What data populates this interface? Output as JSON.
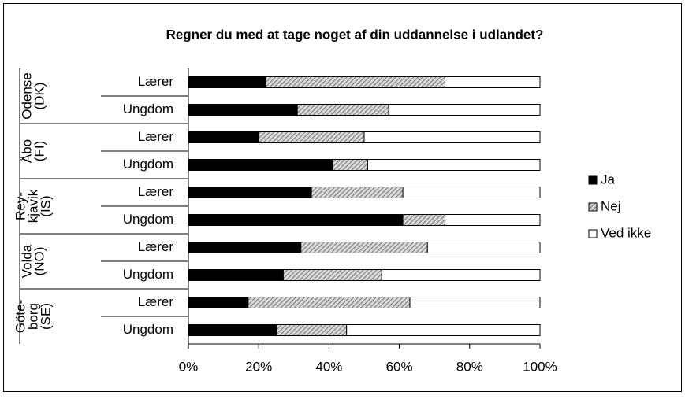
{
  "chart_data": {
    "type": "stacked-bar-horizontal",
    "title": "Regner du med at tage noget af din uddannelse i udlandet?",
    "groups": [
      {
        "label_lines": [
          "Odense",
          "(DK)"
        ],
        "categories": [
          "Lærer",
          "Ungdom"
        ]
      },
      {
        "label_lines": [
          "Åbo",
          "(FI)"
        ],
        "categories": [
          "Lærer",
          "Ungdom"
        ]
      },
      {
        "label_lines": [
          "Rey-",
          "kjavik",
          "(IS)"
        ],
        "categories": [
          "Lærer",
          "Ungdom"
        ]
      },
      {
        "label_lines": [
          "Volda",
          "(NO)"
        ],
        "categories": [
          "Lærer",
          "Ungdom"
        ]
      },
      {
        "label_lines": [
          "Göte-",
          "borg",
          "(SE)"
        ],
        "categories": [
          "Lærer",
          "Ungdom"
        ]
      }
    ],
    "series": [
      {
        "name": "Ja",
        "color": "#000000",
        "values": [
          22,
          31,
          20,
          41,
          35,
          61,
          32,
          27,
          17,
          25
        ]
      },
      {
        "name": "Nej",
        "color": "#b0b0b0",
        "pattern": "hatch",
        "values": [
          51,
          26,
          30,
          10,
          26,
          12,
          36,
          28,
          46,
          20
        ]
      },
      {
        "name": "Ved ikke",
        "color": "#ffffff",
        "values": [
          27,
          43,
          50,
          49,
          39,
          27,
          32,
          45,
          37,
          55
        ]
      }
    ],
    "xlim": [
      0,
      100
    ],
    "xticks": [
      {
        "value": 0,
        "label": "0%"
      },
      {
        "value": 20,
        "label": "20%"
      },
      {
        "value": 40,
        "label": "40%"
      },
      {
        "value": 60,
        "label": "60%"
      },
      {
        "value": 80,
        "label": "80%"
      },
      {
        "value": 100,
        "label": "100%"
      }
    ],
    "legend": "right"
  }
}
